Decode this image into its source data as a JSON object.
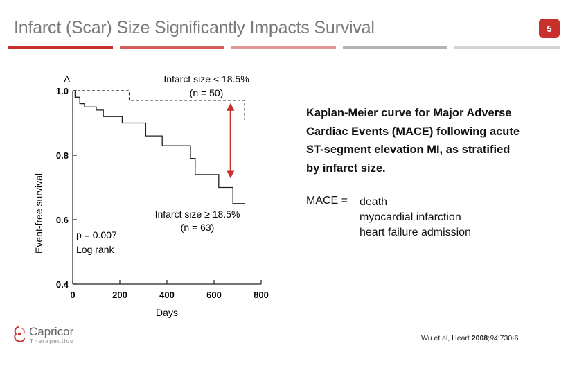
{
  "slide": {
    "title": "Infarct (Scar) Size Significantly Impacts Survival",
    "page_number": "5",
    "accent_color": "#c8312b"
  },
  "description": {
    "lines": [
      "Kaplan-Meier curve for Major Adverse",
      "Cardiac Events (MACE) following acute",
      "ST-segment elevation MI, as stratified",
      "by infarct size."
    ]
  },
  "mace": {
    "label": "MACE =",
    "items": [
      "death",
      "myocardial infarction",
      "heart failure admission"
    ]
  },
  "citation": {
    "prefix": "Wu et al, Heart ",
    "year": "2008",
    "sep": ";",
    "volume": "94",
    "pages": ":730-6."
  },
  "logo": {
    "name": "Capricor",
    "subtitle": "Therapeutics"
  },
  "chart_data": {
    "type": "line",
    "panel_label": "A",
    "xlabel": "Days",
    "ylabel": "Event-free survival",
    "xlim": [
      0,
      800
    ],
    "ylim": [
      0.4,
      1.0
    ],
    "xticks": [
      0,
      200,
      400,
      600,
      800
    ],
    "yticks": [
      0.4,
      0.6,
      0.8,
      1.0
    ],
    "ytick_labels": [
      "0.4",
      "0.6",
      "0.8",
      "1.0"
    ],
    "grid": false,
    "series": [
      {
        "name": "Infarct size < 18.5%",
        "n_label": "(n = 50)",
        "style": "dashed",
        "x": [
          0,
          240,
          240,
          730,
          730
        ],
        "y": [
          1.0,
          1.0,
          0.97,
          0.97,
          0.91
        ]
      },
      {
        "name": "Infarct size ≥ 18.5%",
        "n_label": "(n = 63)",
        "style": "solid",
        "x": [
          0,
          10,
          10,
          30,
          30,
          50,
          50,
          100,
          100,
          130,
          130,
          210,
          210,
          310,
          310,
          380,
          380,
          500,
          500,
          520,
          520,
          620,
          620,
          680,
          680,
          730
        ],
        "y": [
          1.0,
          1.0,
          0.98,
          0.98,
          0.96,
          0.96,
          0.95,
          0.95,
          0.94,
          0.94,
          0.92,
          0.92,
          0.9,
          0.9,
          0.86,
          0.86,
          0.83,
          0.83,
          0.79,
          0.79,
          0.74,
          0.74,
          0.7,
          0.7,
          0.65,
          0.65
        ]
      }
    ],
    "annotations": [
      "p = 0.007",
      "Log rank"
    ],
    "arrow": {
      "x": 670,
      "y_from": 0.95,
      "y_to": 0.74,
      "color": "#c8312b"
    }
  }
}
